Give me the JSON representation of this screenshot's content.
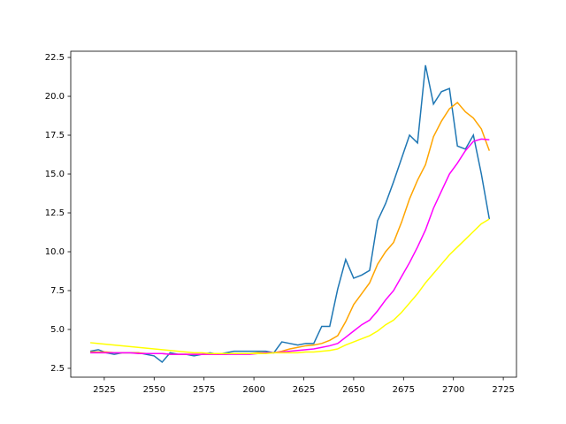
{
  "chart_data": {
    "type": "line",
    "x": [
      2518,
      2522,
      2526,
      2530,
      2534,
      2538,
      2542,
      2546,
      2550,
      2554,
      2558,
      2562,
      2566,
      2570,
      2574,
      2578,
      2582,
      2586,
      2590,
      2594,
      2598,
      2602,
      2606,
      2610,
      2614,
      2618,
      2622,
      2626,
      2630,
      2634,
      2638,
      2642,
      2646,
      2650,
      2654,
      2658,
      2662,
      2666,
      2670,
      2674,
      2678,
      2682,
      2686,
      2690,
      2694,
      2698,
      2702,
      2706,
      2710,
      2714,
      2718
    ],
    "series": [
      {
        "color": "#1f77b4",
        "values": [
          3.6,
          3.7,
          3.5,
          3.4,
          3.5,
          3.5,
          3.5,
          3.4,
          3.3,
          2.9,
          3.5,
          3.4,
          3.4,
          3.3,
          3.4,
          3.5,
          3.4,
          3.5,
          3.6,
          3.6,
          3.6,
          3.6,
          3.6,
          3.5,
          4.2,
          4.1,
          4.0,
          4.1,
          4.1,
          5.2,
          5.2,
          7.6,
          9.5,
          8.3,
          8.5,
          8.8,
          12.0,
          13.1,
          14.5,
          16.0,
          17.5,
          17.0,
          22.0,
          19.5,
          20.3,
          20.5,
          16.8,
          16.6,
          17.5,
          15.0,
          12.1
        ]
      },
      {
        "color": "orange",
        "values": [
          3.55,
          3.55,
          3.55,
          3.5,
          3.5,
          3.5,
          3.5,
          3.45,
          3.45,
          3.45,
          3.4,
          3.4,
          3.4,
          3.4,
          3.4,
          3.4,
          3.4,
          3.4,
          3.45,
          3.45,
          3.45,
          3.5,
          3.5,
          3.5,
          3.6,
          3.75,
          3.85,
          3.95,
          4.0,
          4.1,
          4.3,
          4.6,
          5.5,
          6.6,
          7.3,
          8.0,
          9.2,
          10.0,
          10.6,
          11.9,
          13.4,
          14.6,
          15.6,
          17.4,
          18.4,
          19.2,
          19.6,
          19.0,
          18.6,
          17.9,
          16.5
        ]
      },
      {
        "color": "magenta",
        "values": [
          3.5,
          3.5,
          3.5,
          3.5,
          3.5,
          3.5,
          3.45,
          3.45,
          3.45,
          3.45,
          3.4,
          3.4,
          3.4,
          3.4,
          3.4,
          3.4,
          3.4,
          3.4,
          3.4,
          3.4,
          3.4,
          3.45,
          3.5,
          3.5,
          3.55,
          3.6,
          3.65,
          3.7,
          3.75,
          3.85,
          3.95,
          4.1,
          4.5,
          4.9,
          5.3,
          5.6,
          6.2,
          6.9,
          7.5,
          8.4,
          9.3,
          10.3,
          11.4,
          12.8,
          13.9,
          15.0,
          15.7,
          16.5,
          17.1,
          17.25,
          17.2
        ]
      },
      {
        "color": "yellow",
        "values": [
          4.15,
          4.1,
          4.05,
          4.0,
          3.95,
          3.9,
          3.85,
          3.8,
          3.75,
          3.7,
          3.65,
          3.6,
          3.55,
          3.5,
          3.5,
          3.45,
          3.45,
          3.45,
          3.45,
          3.45,
          3.45,
          3.45,
          3.45,
          3.5,
          3.5,
          3.5,
          3.5,
          3.55,
          3.55,
          3.6,
          3.65,
          3.75,
          4.0,
          4.2,
          4.4,
          4.6,
          4.9,
          5.3,
          5.6,
          6.1,
          6.7,
          7.3,
          8.0,
          8.6,
          9.2,
          9.8,
          10.3,
          10.8,
          11.3,
          11.8,
          12.1
        ]
      }
    ],
    "xlim": [
      2508.2,
      2731.6
    ],
    "ylim": [
      1.93,
      22.9
    ],
    "xticks": [
      2525,
      2550,
      2575,
      2600,
      2625,
      2650,
      2675,
      2700,
      2725
    ],
    "yticks": [
      2.5,
      {
        "value": 5,
        "label": "5.0"
      },
      7.5,
      {
        "value": 10,
        "label": "10.0"
      },
      12.5,
      {
        "value": 15,
        "label": "15.0"
      },
      17.5,
      {
        "value": 20,
        "label": "20.0"
      },
      22.5
    ]
  }
}
